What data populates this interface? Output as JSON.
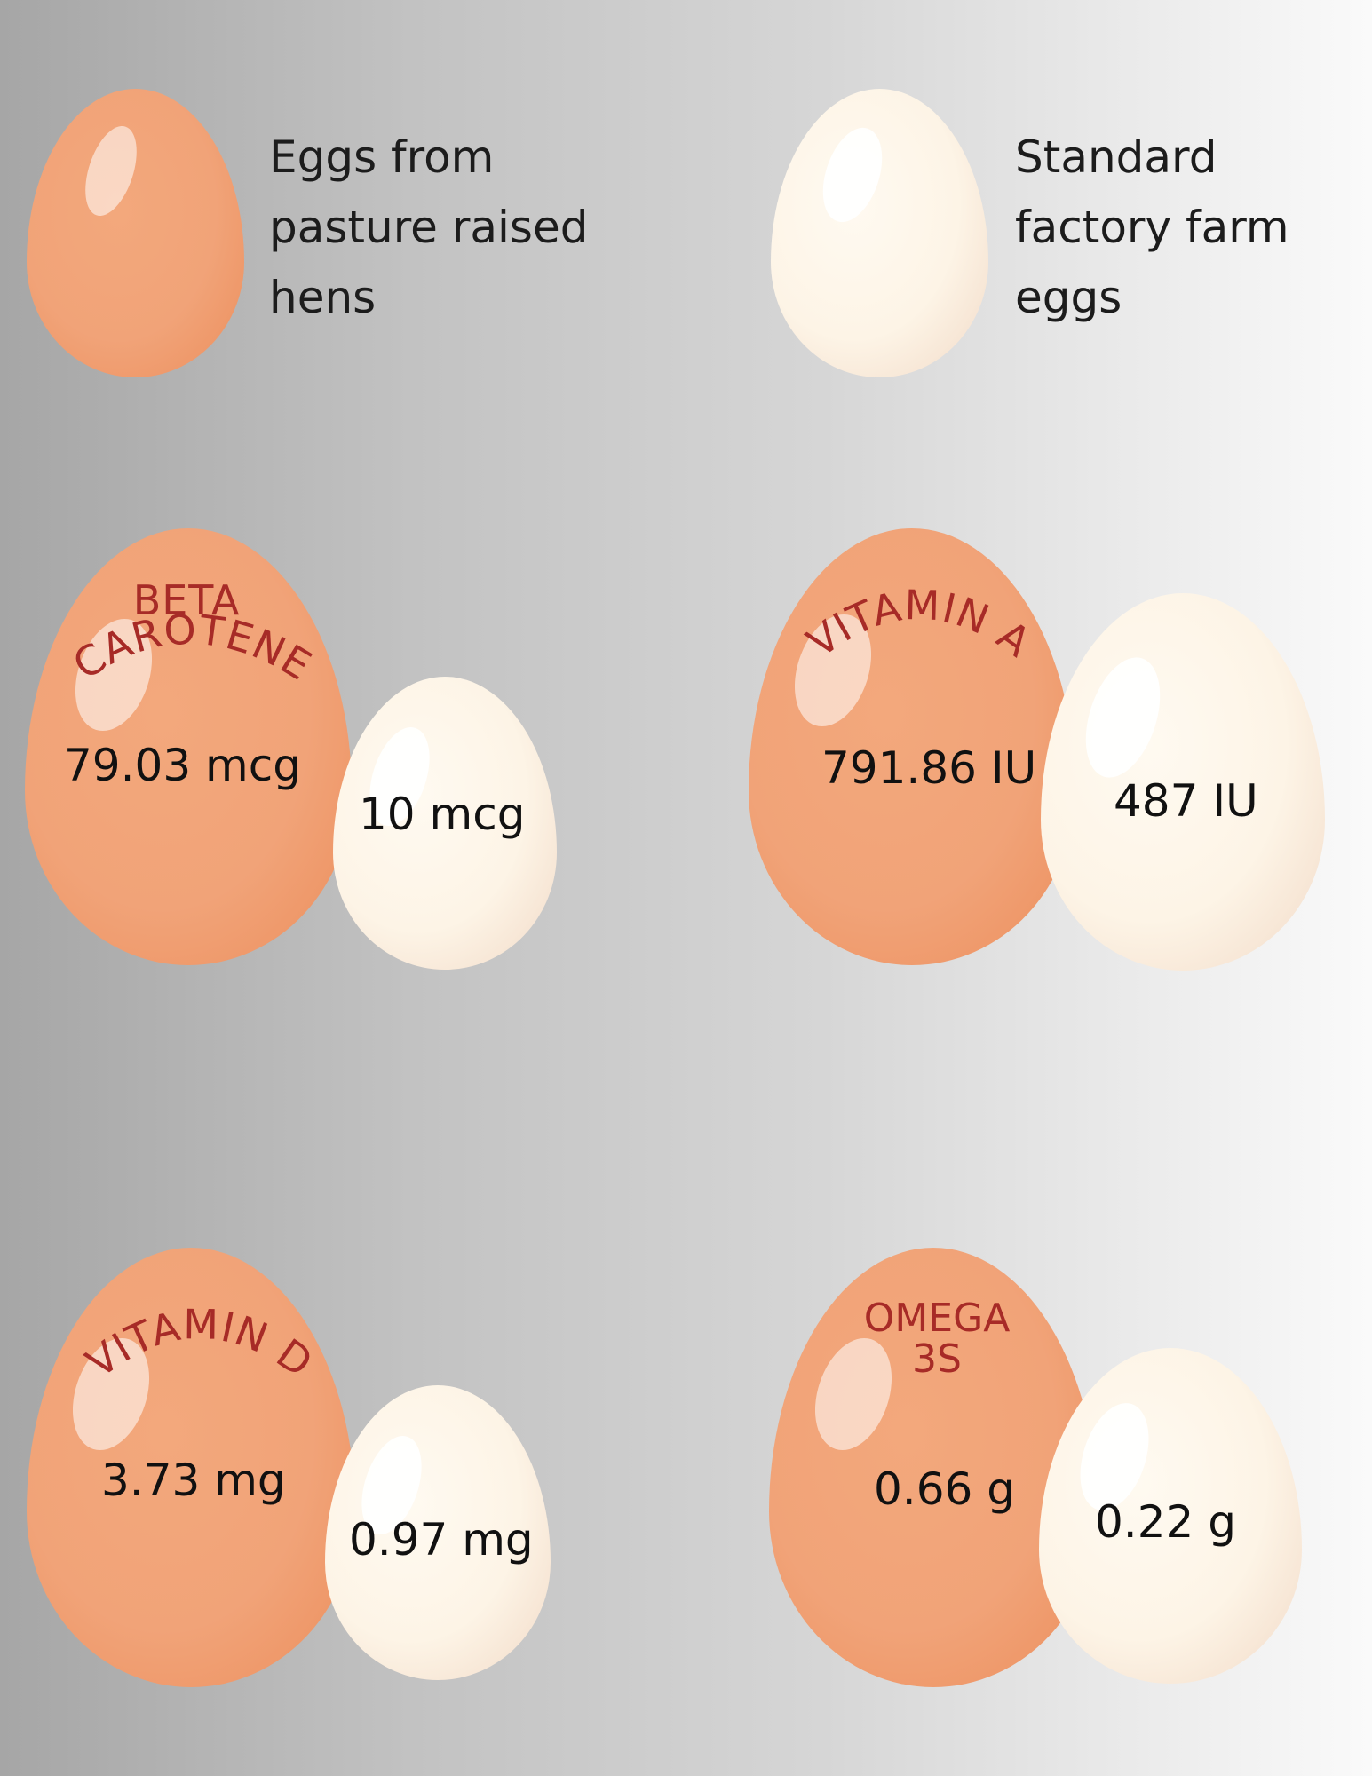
{
  "legend": {
    "pasture": {
      "line1": "Eggs from",
      "line2": "pasture raised",
      "line3": "hens"
    },
    "factory": {
      "line1": "Standard",
      "line2": "factory farm",
      "line3": "eggs"
    }
  },
  "nutrients": [
    {
      "name": "BETA CAROTENE",
      "line1": "BETA",
      "line2": "CAROTENE",
      "pasture_value": "79.03 mcg",
      "factory_value": "10 mcg"
    },
    {
      "name": "VITAMIN A",
      "pasture_value": "791.86 IU",
      "factory_value": "487 IU"
    },
    {
      "name": "VITAMIN D",
      "pasture_value": "3.73 mg",
      "factory_value": "0.97 mg"
    },
    {
      "name": "OMEGA 3S",
      "line1": "OMEGA",
      "line2": "3S",
      "pasture_value": "0.66 g",
      "factory_value": "0.22 g"
    }
  ],
  "colors": {
    "pasture_egg": "#f1a378",
    "factory_egg": "#fdf4e6",
    "label": "#a72b27"
  }
}
